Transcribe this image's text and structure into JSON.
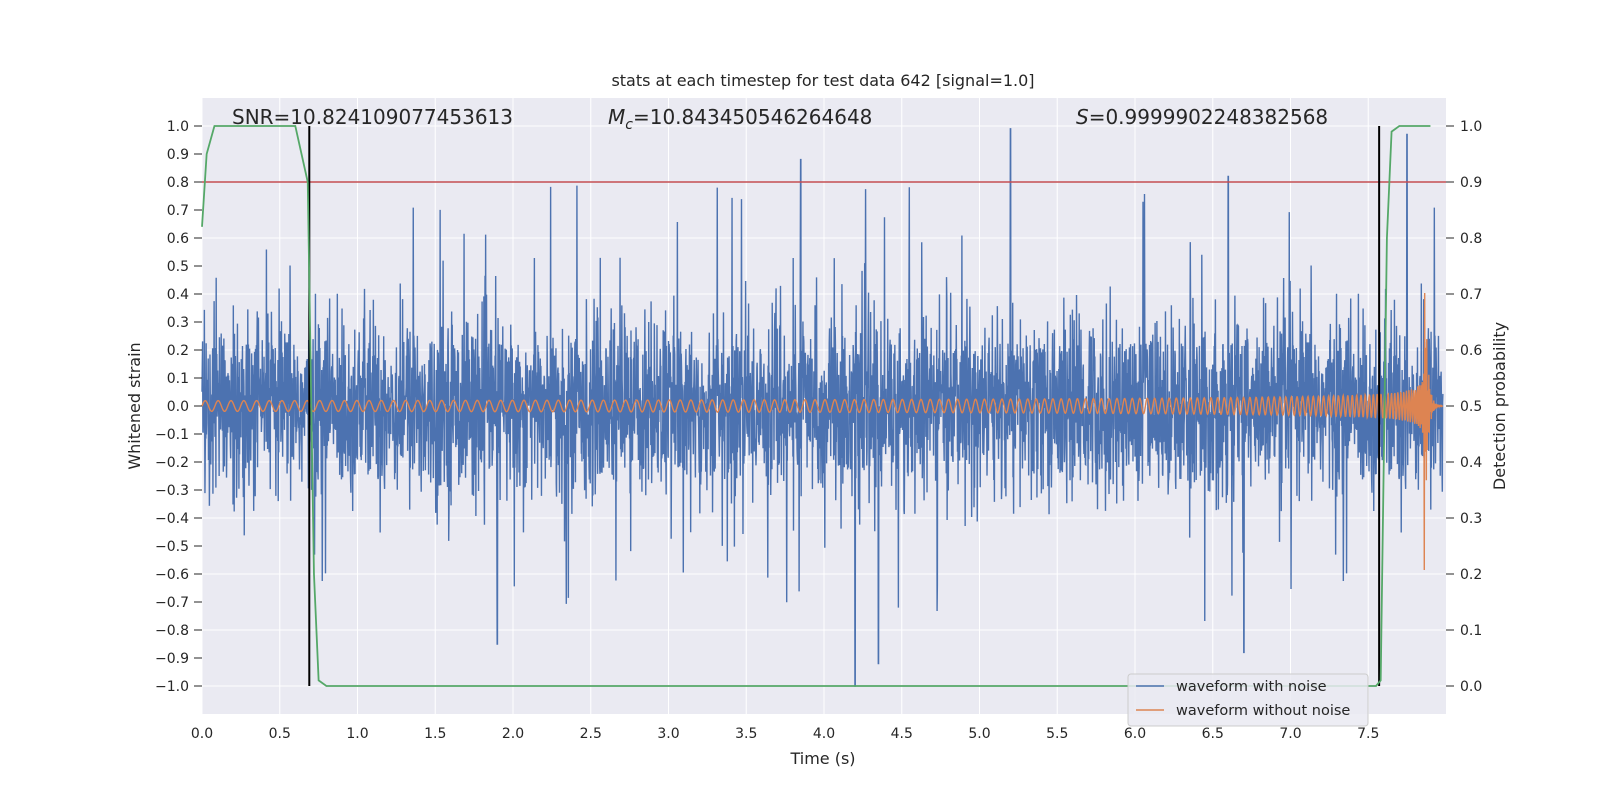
{
  "chart_data": {
    "type": "line",
    "title": "stats at each timestep for test data 642 [signal=1.0]",
    "xlabel": "Time (s)",
    "ylabel_left": "Whitened strain",
    "ylabel_right": "Detection probability",
    "xlim": [
      0.0,
      8.0
    ],
    "ylim_left": [
      -1.1,
      1.1
    ],
    "ylim_right": [
      -0.05,
      1.05
    ],
    "x_ticks": [
      "0.0",
      "0.5",
      "1.0",
      "1.5",
      "2.0",
      "2.5",
      "3.0",
      "3.5",
      "4.0",
      "4.5",
      "5.0",
      "5.5",
      "6.0",
      "6.5",
      "7.0",
      "7.5"
    ],
    "y_ticks_left": [
      "1.0",
      "0.9",
      "0.8",
      "0.7",
      "0.6",
      "0.5",
      "0.4",
      "0.3",
      "0.2",
      "0.1",
      "0.0",
      "−0.1",
      "−0.2",
      "−0.3",
      "−0.4",
      "−0.5",
      "−0.6",
      "−0.7",
      "−0.8",
      "−0.9",
      "−1.0"
    ],
    "y_ticks_right": [
      "1.0",
      "0.9",
      "0.8",
      "0.7",
      "0.6",
      "0.5",
      "0.4",
      "0.3",
      "0.2",
      "0.1",
      "0.0"
    ],
    "grid": true,
    "legend_position": "bottom-right",
    "annotations": {
      "snr": "SNR=10.824109077453613",
      "mc_symbol": "M",
      "mc_sub": "c",
      "mc_value": "=10.843450546264648",
      "s_symbol": "S",
      "s_value": "=0.9999902248382568"
    },
    "threshold_right": 0.9,
    "vertical_lines_x": [
      0.69,
      7.57
    ],
    "series": [
      {
        "name": "waveform with noise",
        "color": "#4c72b0",
        "axis": "left",
        "description_values": "whitened strain noise, envelope approx ±0.45 with spikes up to 0.99 and down to -1.0",
        "peaks": [
          [
            4.2,
            -1.0
          ],
          [
            5.2,
            0.99
          ],
          [
            3.85,
            0.88
          ],
          [
            7.75,
            0.97
          ],
          [
            6.6,
            0.82
          ],
          [
            1.9,
            -0.85
          ],
          [
            4.35,
            -0.92
          ],
          [
            6.7,
            -0.88
          ]
        ]
      },
      {
        "name": "waveform without noise",
        "color": "#dd8452",
        "axis": "left",
        "description_values": "inspiral chirp, amplitude ~0.02 at t=0 rising to ~0.6 at merger near t=7.85 s, then ringdown"
      },
      {
        "name": "",
        "color": "#55a868",
        "axis": "right",
        "x": [
          0.0,
          0.03,
          0.08,
          0.3,
          0.6,
          0.68,
          0.72,
          0.75,
          0.8,
          7.55,
          7.58,
          7.62,
          7.65,
          7.7,
          7.9
        ],
        "y": [
          0.82,
          0.95,
          1.0,
          1.0,
          1.0,
          0.9,
          0.2,
          0.01,
          0.0,
          0.0,
          0.01,
          0.8,
          0.99,
          1.0,
          1.0
        ]
      }
    ]
  },
  "colors": {
    "background": "#eaeaf2",
    "grid": "#ffffff",
    "noise": "#4c72b0",
    "clean": "#dd8452",
    "prob": "#55a868",
    "threshold": "#c44e52",
    "vline": "#000000"
  }
}
